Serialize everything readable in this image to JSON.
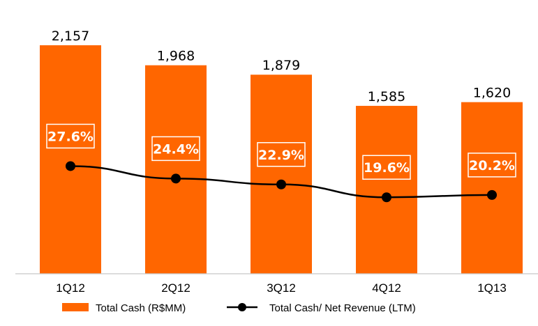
{
  "chart_data": {
    "type": "bar",
    "categories": [
      "1Q12",
      "2Q12",
      "3Q12",
      "4Q12",
      "1Q13"
    ],
    "series": [
      {
        "name": "Total Cash (R$MM)",
        "type": "bar",
        "values": [
          2157,
          1968,
          1879,
          1585,
          1620
        ],
        "value_labels": [
          "2,157",
          "1,968",
          "1,879",
          "1,585",
          "1,620"
        ],
        "color": "#ff6600"
      },
      {
        "name": "Total Cash/ Net Revenue (LTM)",
        "type": "line",
        "values": [
          27.6,
          24.4,
          22.9,
          19.6,
          20.2
        ],
        "value_labels": [
          "27.6%",
          "24.4%",
          "22.9%",
          "19.6%",
          "20.2%"
        ],
        "color": "#000000"
      }
    ],
    "title": "",
    "xlabel": "",
    "ylabel": "",
    "ylim": [
      0,
      2400
    ],
    "y2lim": [
      0,
      60
    ],
    "grid": false,
    "legend_position": "bottom-center"
  }
}
